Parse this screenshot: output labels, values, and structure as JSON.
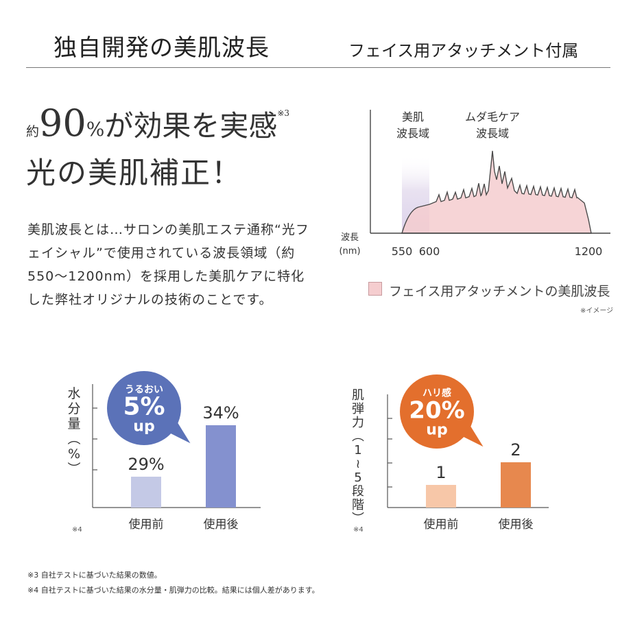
{
  "header": {
    "title_left": "独自開発の美肌波長",
    "title_right": "フェイス用アタッチメント付属"
  },
  "headline": {
    "prefix": "約",
    "number": "90",
    "percent": "%",
    "rest": "が効果を実感",
    "note": "※3",
    "line2": "光の美肌補正！"
  },
  "body_text": "美肌波長とは…サロンの美肌エステ通称“光フェイシャル”で使用されている波長領域（約 550〜1200nm）を採用した美肌ケアに特化した弊社オリジナルの技術のことです。",
  "legend": {
    "label": "フェイス用アタッチメントの美肌波長",
    "image_note": "※イメージ"
  },
  "footnotes": [
    "※3  自社テストに基づいた結果の数値。",
    "※4  自社テストに基づいた結果の水分量・肌弾力の比較。結果には個人差があります。"
  ],
  "colors": {
    "bar1_before": "#c4c9e6",
    "bar1_after": "#8491cf",
    "bubble1": "#5b72b8",
    "bar2_before": "#f7c7a8",
    "bar2_after": "#e7884e",
    "bubble2": "#e36f2d",
    "spectrum_fill": "#f5cdcf",
    "skin_band": "#e5dcef"
  },
  "chart_data": [
    {
      "type": "area",
      "xlabel": "波長 (nm)",
      "x_ticks": [
        "550",
        "600",
        "1200"
      ],
      "band_labels": [
        {
          "text": "美肌波長域",
          "lines": [
            "美肌",
            "波長域"
          ],
          "range": [
            550,
            600
          ]
        },
        {
          "text": "ムダ毛ケア波長域",
          "lines": [
            "ムダ毛ケア",
            "波長域"
          ]
        }
      ],
      "series_name": "フェイス用アタッチメントの美肌波長",
      "x_range": [
        550,
        1200
      ],
      "note": "※イメージ"
    },
    {
      "type": "bar",
      "ylabel": "水分量(%)",
      "categories": [
        "使用前",
        "使用後"
      ],
      "values": [
        29,
        34
      ],
      "value_labels": [
        "29%",
        "34%"
      ],
      "callout": {
        "label": "うるおい",
        "value": "5%",
        "suffix": "up"
      },
      "note": "※4"
    },
    {
      "type": "bar",
      "ylabel": "肌弾力(1〜5段階)",
      "categories": [
        "使用前",
        "使用後"
      ],
      "values": [
        1,
        2
      ],
      "value_labels": [
        "1",
        "2"
      ],
      "callout": {
        "label": "ハリ感",
        "value": "20%",
        "suffix": "up"
      },
      "note": "※4"
    }
  ]
}
